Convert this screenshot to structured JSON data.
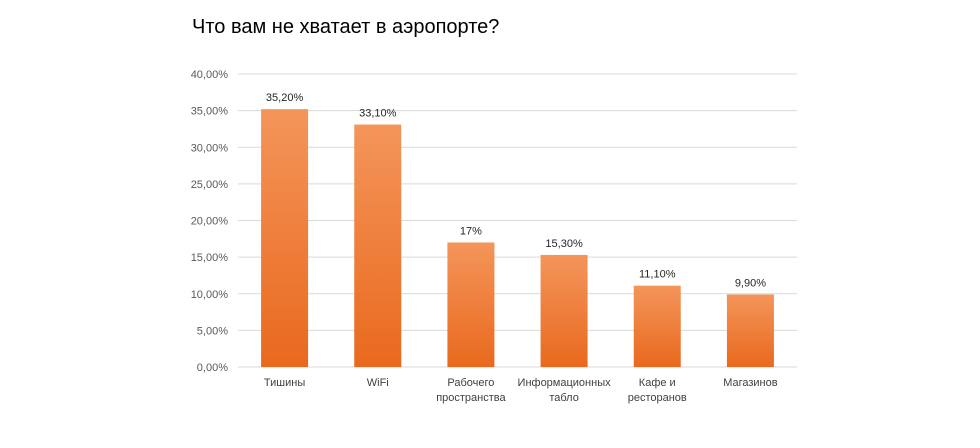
{
  "chart_data": {
    "type": "bar",
    "title": "Что вам не хватает в аэропорте?",
    "categories": [
      [
        "Тишины"
      ],
      [
        "WiFi"
      ],
      [
        "Рабочего",
        "пространства"
      ],
      [
        "Информационных",
        "табло"
      ],
      [
        "Кафе и",
        "ресторанов"
      ],
      [
        "Магазинов"
      ]
    ],
    "values": [
      35.2,
      33.1,
      17,
      15.3,
      11.1,
      9.9
    ],
    "data_labels": [
      "35,20%",
      "33,10%",
      "17%",
      "15,30%",
      "11,10%",
      "9,90%"
    ],
    "ylim": [
      0,
      40
    ],
    "yticks": [
      0,
      5,
      10,
      15,
      20,
      25,
      30,
      35,
      40
    ],
    "ytick_labels": [
      "0,00%",
      "5,00%",
      "10,00%",
      "15,00%",
      "20,00%",
      "25,00%",
      "30,00%",
      "35,00%",
      "40,00%"
    ],
    "grid": true,
    "legend": "none",
    "colors": {
      "bar_top": "#F4955A",
      "bar_bottom": "#E9691E",
      "grid": "#D9D9D9"
    }
  }
}
